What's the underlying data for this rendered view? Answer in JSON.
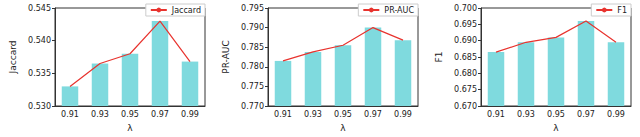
{
  "chart_data": [
    {
      "type": "bar",
      "xlabel": "λ",
      "ylabel": "Jaccard",
      "categories": [
        "0.91",
        "0.93",
        "0.95",
        "0.97",
        "0.99"
      ],
      "series": [
        {
          "type": "bar",
          "color": "#7fdade",
          "values": [
            0.533,
            0.5365,
            0.538,
            0.543,
            0.5368
          ]
        },
        {
          "type": "line",
          "name": "Jaccard",
          "color": "#e8332e",
          "values": [
            0.533,
            0.5365,
            0.538,
            0.543,
            0.5368
          ]
        }
      ],
      "ylim": [
        0.53,
        0.545
      ],
      "yticks": [
        {
          "value": 0.53,
          "label": "0.530"
        },
        {
          "value": 0.535,
          "label": "0.535"
        },
        {
          "value": 0.54,
          "label": "0.540"
        },
        {
          "value": 0.545,
          "label": "0.545"
        }
      ],
      "legend": "upper right"
    },
    {
      "type": "bar",
      "xlabel": "λ",
      "ylabel": "PR-AUC",
      "categories": [
        "0.91",
        "0.93",
        "0.95",
        "0.97",
        "0.99"
      ],
      "series": [
        {
          "type": "bar",
          "color": "#7fdade",
          "values": [
            0.7815,
            0.7838,
            0.7855,
            0.79,
            0.7868
          ]
        },
        {
          "type": "line",
          "name": "PR-AUC",
          "color": "#e8332e",
          "values": [
            0.7815,
            0.7838,
            0.7855,
            0.79,
            0.7868
          ]
        }
      ],
      "ylim": [
        0.77,
        0.795
      ],
      "yticks": [
        {
          "value": 0.77,
          "label": "0.770"
        },
        0.775,
        {
          "value": 0.78,
          "label": "0.780"
        },
        0.785,
        {
          "value": 0.79,
          "label": "0.790"
        },
        0.795
      ],
      "legend": "upper right"
    },
    {
      "type": "bar",
      "xlabel": "λ",
      "ylabel": "F1",
      "categories": [
        "0.91",
        "0.93",
        "0.95",
        "0.97",
        "0.99"
      ],
      "series": [
        {
          "type": "bar",
          "color": "#7fdade",
          "values": [
            0.6865,
            0.6895,
            0.691,
            0.696,
            0.6895
          ]
        },
        {
          "type": "line",
          "name": "F1",
          "color": "#e8332e",
          "values": [
            0.6865,
            0.6895,
            0.691,
            0.696,
            0.6895
          ]
        }
      ],
      "ylim": [
        0.67,
        0.7
      ],
      "yticks": [
        {
          "value": 0.67,
          "label": "0.670"
        },
        0.675,
        {
          "value": 0.68,
          "label": "0.680"
        },
        0.685,
        {
          "value": 0.69,
          "label": "0.690"
        },
        0.695,
        {
          "value": 0.7,
          "label": "0.700"
        }
      ],
      "legend": "upper right"
    }
  ]
}
